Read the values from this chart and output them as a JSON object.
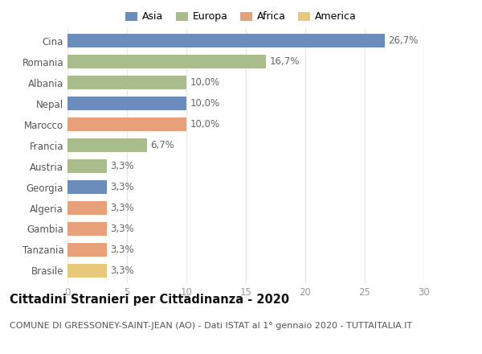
{
  "countries": [
    "Cina",
    "Romania",
    "Albania",
    "Nepal",
    "Marocco",
    "Francia",
    "Austria",
    "Georgia",
    "Algeria",
    "Gambia",
    "Tanzania",
    "Brasile"
  ],
  "values": [
    26.7,
    16.7,
    10.0,
    10.0,
    10.0,
    6.7,
    3.3,
    3.3,
    3.3,
    3.3,
    3.3,
    3.3
  ],
  "labels": [
    "26,7%",
    "16,7%",
    "10,0%",
    "10,0%",
    "10,0%",
    "6,7%",
    "3,3%",
    "3,3%",
    "3,3%",
    "3,3%",
    "3,3%",
    "3,3%"
  ],
  "colors": [
    "#6b8cba",
    "#a8bc8c",
    "#a8bc8c",
    "#6b8cba",
    "#e8a07a",
    "#a8bc8c",
    "#a8bc8c",
    "#6b8cba",
    "#e8a07a",
    "#e8a07a",
    "#e8a07a",
    "#e8c87a"
  ],
  "legend_labels": [
    "Asia",
    "Europa",
    "Africa",
    "America"
  ],
  "legend_colors": [
    "#6b8cba",
    "#a8bc8c",
    "#e8a07a",
    "#e8c87a"
  ],
  "title": "Cittadini Stranieri per Cittadinanza - 2020",
  "subtitle": "COMUNE DI GRESSONEY-SAINT-JEAN (AO) - Dati ISTAT al 1° gennaio 2020 - TUTTAITALIA.IT",
  "xlim": [
    0,
    30
  ],
  "xticks": [
    0,
    5,
    10,
    15,
    20,
    25,
    30
  ],
  "bg_color": "#ffffff",
  "grid_color": "#e8e8e8",
  "bar_height": 0.65,
  "label_fontsize": 8.5,
  "tick_fontsize": 8.5,
  "title_fontsize": 10.5,
  "subtitle_fontsize": 8.0
}
